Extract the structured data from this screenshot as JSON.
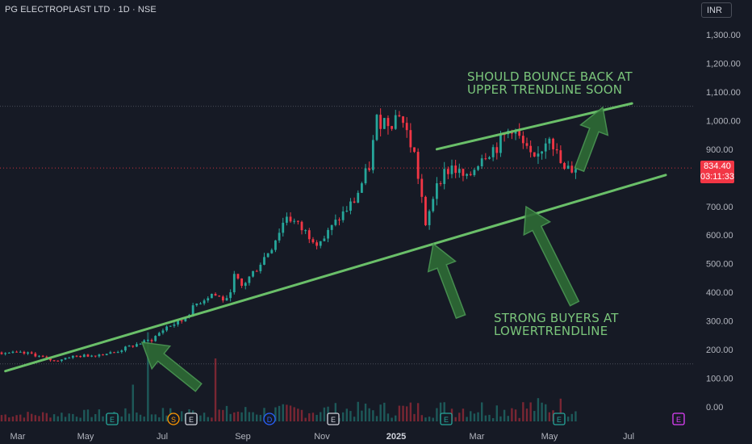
{
  "title": "PG ELECTROPLAST LTD · 1D · NSE",
  "currency": "INR",
  "last_price": "834.40",
  "countdown": "03:11:33",
  "annotations": {
    "upper": [
      "SHOULD BOUNCE BACK AT",
      "UPPER TRENDLINE SOON"
    ],
    "lower": [
      "STRONG BUYERS AT",
      "LOWERTRENDLINE"
    ]
  },
  "event_markers": [
    "E",
    "S",
    "E",
    "D",
    "E",
    "E",
    "E",
    "E"
  ],
  "colors": {
    "background": "#161a25",
    "up": "#26a69a",
    "down": "#f23645",
    "annotation": "#6abf69",
    "arrow": "#2e6b35"
  },
  "chart_data": {
    "type": "candlestick",
    "title": "PG ELECTROPLAST LTD · 1D · NSE",
    "x_ticks": [
      "Mar",
      "May",
      "Jul",
      "Sep",
      "Nov",
      "2025",
      "Mar",
      "May",
      "Jul"
    ],
    "y_ticks": [
      "1,300.00",
      "1,200.00",
      "1,100.00",
      "1,000.00",
      "900.00",
      "800.00",
      "700.00",
      "600.00",
      "500.00",
      "400.00",
      "300.00",
      "200.00",
      "100.00",
      "0.00"
    ],
    "ylim": [
      -20,
      1370
    ],
    "last_close": 834.4,
    "price_path": [
      [
        0,
        190
      ],
      [
        8,
        185
      ],
      [
        14,
        160
      ],
      [
        18,
        175
      ],
      [
        24,
        180
      ],
      [
        30,
        190
      ],
      [
        34,
        210
      ],
      [
        40,
        235
      ],
      [
        44,
        280
      ],
      [
        48,
        300
      ],
      [
        52,
        360
      ],
      [
        56,
        395
      ],
      [
        60,
        370
      ],
      [
        62,
        455
      ],
      [
        64,
        420
      ],
      [
        68,
        485
      ],
      [
        72,
        560
      ],
      [
        76,
        670
      ],
      [
        80,
        620
      ],
      [
        84,
        580
      ],
      [
        86,
        590
      ],
      [
        90,
        660
      ],
      [
        94,
        720
      ],
      [
        98,
        840
      ],
      [
        100,
        1000
      ],
      [
        104,
        1000
      ],
      [
        106,
        1030
      ],
      [
        110,
        880
      ],
      [
        112,
        730
      ],
      [
        113,
        620
      ],
      [
        116,
        790
      ],
      [
        120,
        840
      ],
      [
        124,
        790
      ],
      [
        128,
        880
      ],
      [
        132,
        910
      ],
      [
        136,
        980
      ],
      [
        140,
        890
      ],
      [
        142,
        850
      ],
      [
        146,
        960
      ],
      [
        148,
        880
      ],
      [
        150,
        820
      ],
      [
        153,
        840
      ]
    ],
    "volume_spikes": [
      {
        "x": 39,
        "relative": 0.85
      },
      {
        "x": 57,
        "relative": 0.6
      },
      {
        "x": 35,
        "relative": 0.35
      }
    ],
    "trendlines": [
      {
        "name": "lower",
        "from": [
          1,
          125
        ],
        "to": [
          177,
          810
        ]
      },
      {
        "name": "upper",
        "from": [
          116,
          900
        ],
        "to": [
          168,
          1060
        ]
      }
    ],
    "levels": [
      1050,
      150
    ],
    "grid": false,
    "legend": "none"
  }
}
